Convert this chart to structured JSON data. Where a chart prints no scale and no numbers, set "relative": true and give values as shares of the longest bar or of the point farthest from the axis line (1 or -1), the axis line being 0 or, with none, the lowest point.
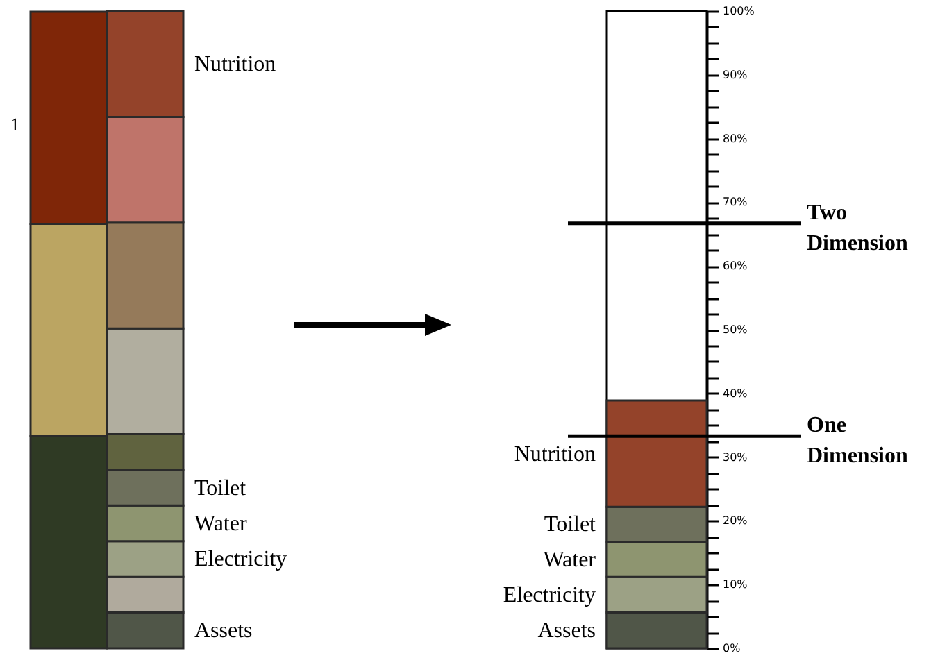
{
  "chart_data": [
    {
      "type": "bar",
      "stacked": true,
      "relative": true,
      "categories": [
        null,
        null
      ],
      "annotations": [
        "1"
      ],
      "series": [
        {
          "color": "#2f3a24",
          "values": [
            0.333,
            null
          ]
        },
        {
          "color": "#bba562",
          "values": [
            0.333,
            null
          ]
        },
        {
          "color": "#7f2608",
          "values": [
            0.333,
            null
          ]
        },
        {
          "name": "Assets",
          "color": "#505648",
          "values": [
            null,
            0.056
          ]
        },
        {
          "color": "#b0aa9d",
          "values": [
            null,
            0.056
          ]
        },
        {
          "name": "Electricity",
          "color": "#9ca185",
          "values": [
            null,
            0.056
          ]
        },
        {
          "name": "Water",
          "color": "#8e9570",
          "values": [
            null,
            0.056
          ]
        },
        {
          "name": "Toilet",
          "color": "#6e705c",
          "values": [
            null,
            0.056
          ]
        },
        {
          "color": "#60633f",
          "values": [
            null,
            0.056
          ]
        },
        {
          "color": "#b1ae9f",
          "values": [
            null,
            0.166
          ]
        },
        {
          "color": "#957a5a",
          "values": [
            null,
            0.166
          ]
        },
        {
          "color": "#bf746a",
          "values": [
            null,
            0.166
          ]
        },
        {
          "name": "Nutrition",
          "color": "#94432a",
          "values": [
            null,
            0.166
          ]
        }
      ]
    },
    {
      "type": "bar",
      "stacked": true,
      "categories": [
        null
      ],
      "ylim": [
        0,
        100
      ],
      "yticks": [
        {
          "value": 0,
          "label": "0%"
        },
        {
          "value": 2.5,
          "label": null
        },
        {
          "value": 5,
          "label": null
        },
        {
          "value": 7.5,
          "label": null
        },
        {
          "value": 10,
          "label": "10%"
        },
        {
          "value": 12.5,
          "label": null
        },
        {
          "value": 15,
          "label": null
        },
        {
          "value": 17.5,
          "label": null
        },
        {
          "value": 20,
          "label": "20%"
        },
        {
          "value": 22.5,
          "label": null
        },
        {
          "value": 25,
          "label": null
        },
        {
          "value": 27.5,
          "label": null
        },
        {
          "value": 30,
          "label": "30%"
        },
        {
          "value": 32.5,
          "label": null
        },
        {
          "value": 35,
          "label": null
        },
        {
          "value": 37.5,
          "label": null
        },
        {
          "value": 40,
          "label": "40%"
        },
        {
          "value": 42.5,
          "label": null
        },
        {
          "value": 45,
          "label": null
        },
        {
          "value": 47.5,
          "label": null
        },
        {
          "value": 50,
          "label": "50%"
        },
        {
          "value": 52.5,
          "label": null
        },
        {
          "value": 55,
          "label": null
        },
        {
          "value": 57.5,
          "label": null
        },
        {
          "value": 60,
          "label": "60%"
        },
        {
          "value": 62.5,
          "label": null
        },
        {
          "value": 65,
          "label": null
        },
        {
          "value": 67.5,
          "label": null
        },
        {
          "value": 70,
          "label": "70%"
        },
        {
          "value": 72.5,
          "label": null
        },
        {
          "value": 75,
          "label": null
        },
        {
          "value": 77.5,
          "label": null
        },
        {
          "value": 80,
          "label": "80%"
        },
        {
          "value": 82.5,
          "label": null
        },
        {
          "value": 85,
          "label": null
        },
        {
          "value": 87.5,
          "label": null
        },
        {
          "value": 90,
          "label": "90%"
        },
        {
          "value": 92.5,
          "label": null
        },
        {
          "value": 95,
          "label": null
        },
        {
          "value": 97.5,
          "label": null
        },
        {
          "value": 100,
          "label": "100%"
        }
      ],
      "ref_lines": [
        {
          "axis": "y",
          "value": 66.7,
          "label": "Two Dimension"
        },
        {
          "axis": "y",
          "value": 33.3,
          "label": "One Dimension"
        }
      ],
      "series": [
        {
          "name": "Assets",
          "color": "#505648",
          "values": [
            5.6
          ]
        },
        {
          "name": "Electricity",
          "color": "#9ca185",
          "values": [
            5.6
          ]
        },
        {
          "name": "Water",
          "color": "#8e9570",
          "values": [
            5.5
          ]
        },
        {
          "name": "Toilet",
          "color": "#6e705c",
          "values": [
            5.5
          ]
        },
        {
          "name": "Nutrition",
          "color": "#94432a",
          "values": [
            16.7
          ]
        }
      ]
    }
  ]
}
